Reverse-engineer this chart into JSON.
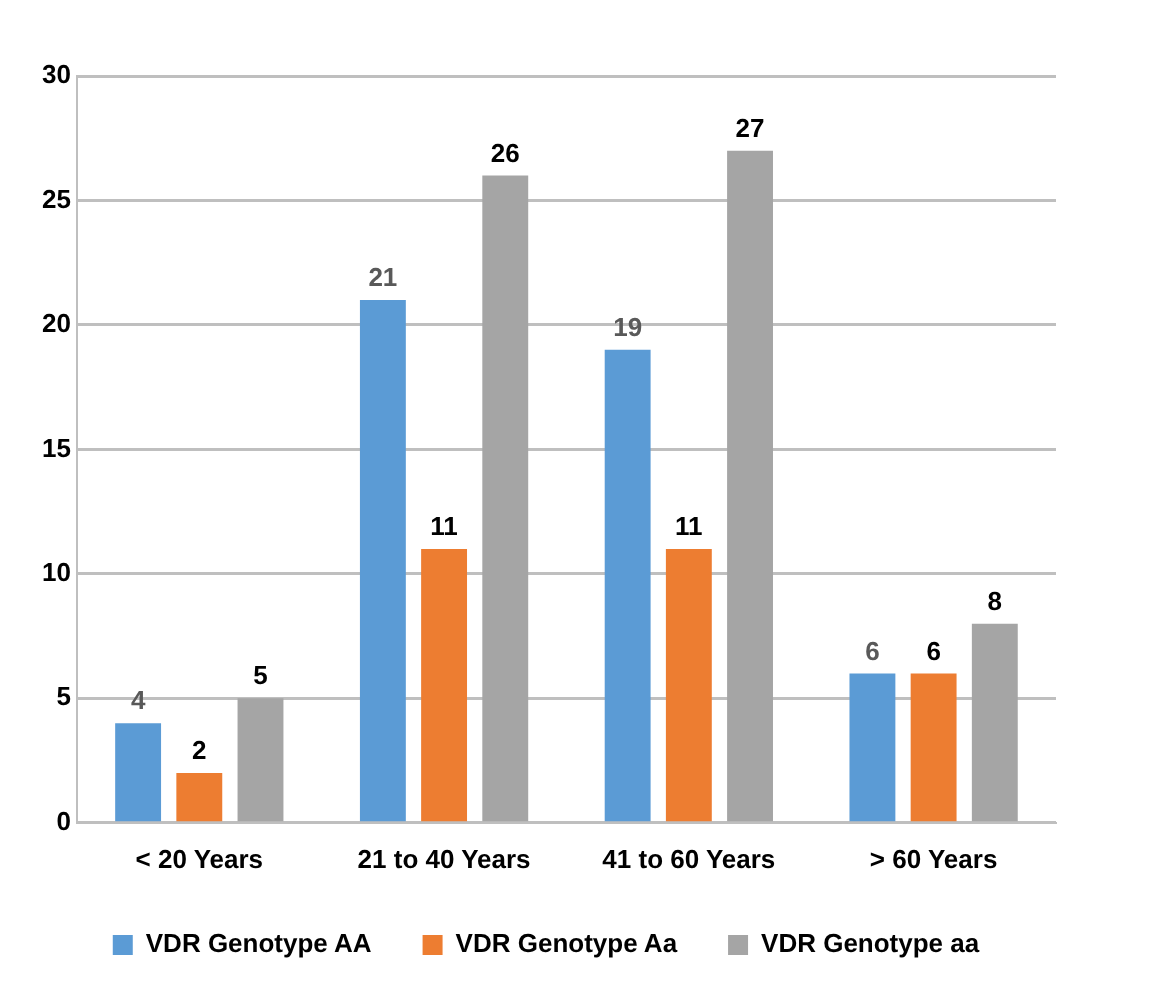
{
  "chart_data": {
    "type": "bar",
    "categories": [
      "< 20 Years",
      "21 to 40 Years",
      "41 to 60 Years",
      "> 60 Years"
    ],
    "series": [
      {
        "name": "VDR Genotype AA",
        "color": "#5b9bd5",
        "values": [
          4,
          21,
          19,
          6
        ]
      },
      {
        "name": "VDR Genotype Aa",
        "color": "#ed7d31",
        "values": [
          2,
          11,
          11,
          6
        ]
      },
      {
        "name": "VDR Genotype aa",
        "color": "#a5a5a5",
        "values": [
          5,
          26,
          27,
          8
        ]
      }
    ],
    "ylim": [
      0,
      30
    ],
    "yticks": [
      0,
      5,
      10,
      15,
      20,
      25,
      30
    ],
    "grid": "y",
    "legend": "bottom",
    "data_labels": true
  }
}
